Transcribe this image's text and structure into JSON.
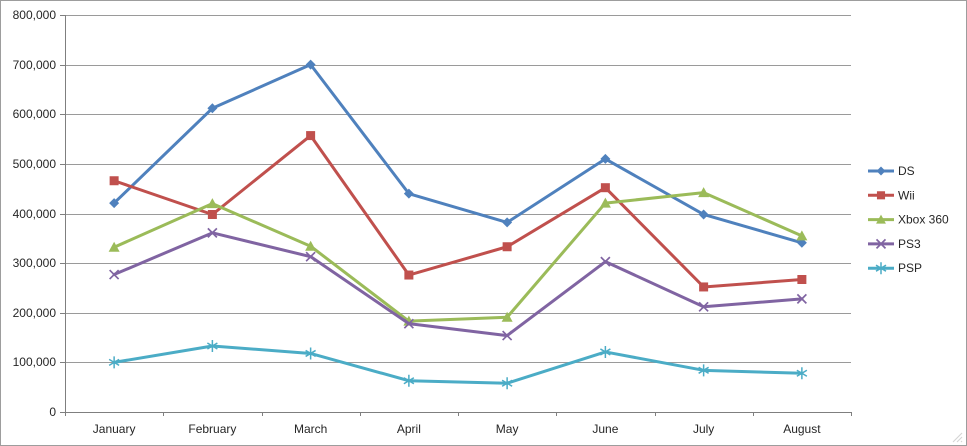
{
  "chart_data": {
    "type": "line",
    "title": "",
    "xlabel": "",
    "ylabel": "",
    "categories": [
      "January",
      "February",
      "March",
      "April",
      "May",
      "June",
      "July",
      "August"
    ],
    "series": [
      {
        "name": "DS",
        "color": "#4F81BD",
        "marker": "diamond",
        "values": [
          421000,
          612000,
          700000,
          440000,
          382000,
          510000,
          398000,
          341000
        ]
      },
      {
        "name": "Wii",
        "color": "#C0504D",
        "marker": "square",
        "values": [
          466000,
          398000,
          557000,
          276000,
          333000,
          452000,
          252000,
          267000
        ]
      },
      {
        "name": "Xbox 360",
        "color": "#9BBB59",
        "marker": "triangle",
        "values": [
          332000,
          420000,
          334000,
          183000,
          191000,
          421000,
          442000,
          355000
        ]
      },
      {
        "name": "PS3",
        "color": "#8064A2",
        "marker": "x",
        "values": [
          277000,
          361000,
          313000,
          178000,
          154000,
          303000,
          212000,
          228000
        ]
      },
      {
        "name": "PSP",
        "color": "#4BACC6",
        "marker": "star",
        "values": [
          100000,
          133000,
          118000,
          63000,
          58000,
          121000,
          84000,
          78000
        ]
      }
    ],
    "ylim": [
      0,
      800000
    ],
    "ytick_step": 100000,
    "yticks": [
      "0",
      "100,000",
      "200,000",
      "300,000",
      "400,000",
      "500,000",
      "600,000",
      "700,000",
      "800,000"
    ],
    "grid": true,
    "legend_position": "right",
    "colors": {
      "background": "#FFFFFF",
      "window_border": "#9D9D9D",
      "axis": "#7F7F7F",
      "grid": "#9A9A9A",
      "label": "#262626",
      "grip": "#D6D6D6"
    }
  }
}
